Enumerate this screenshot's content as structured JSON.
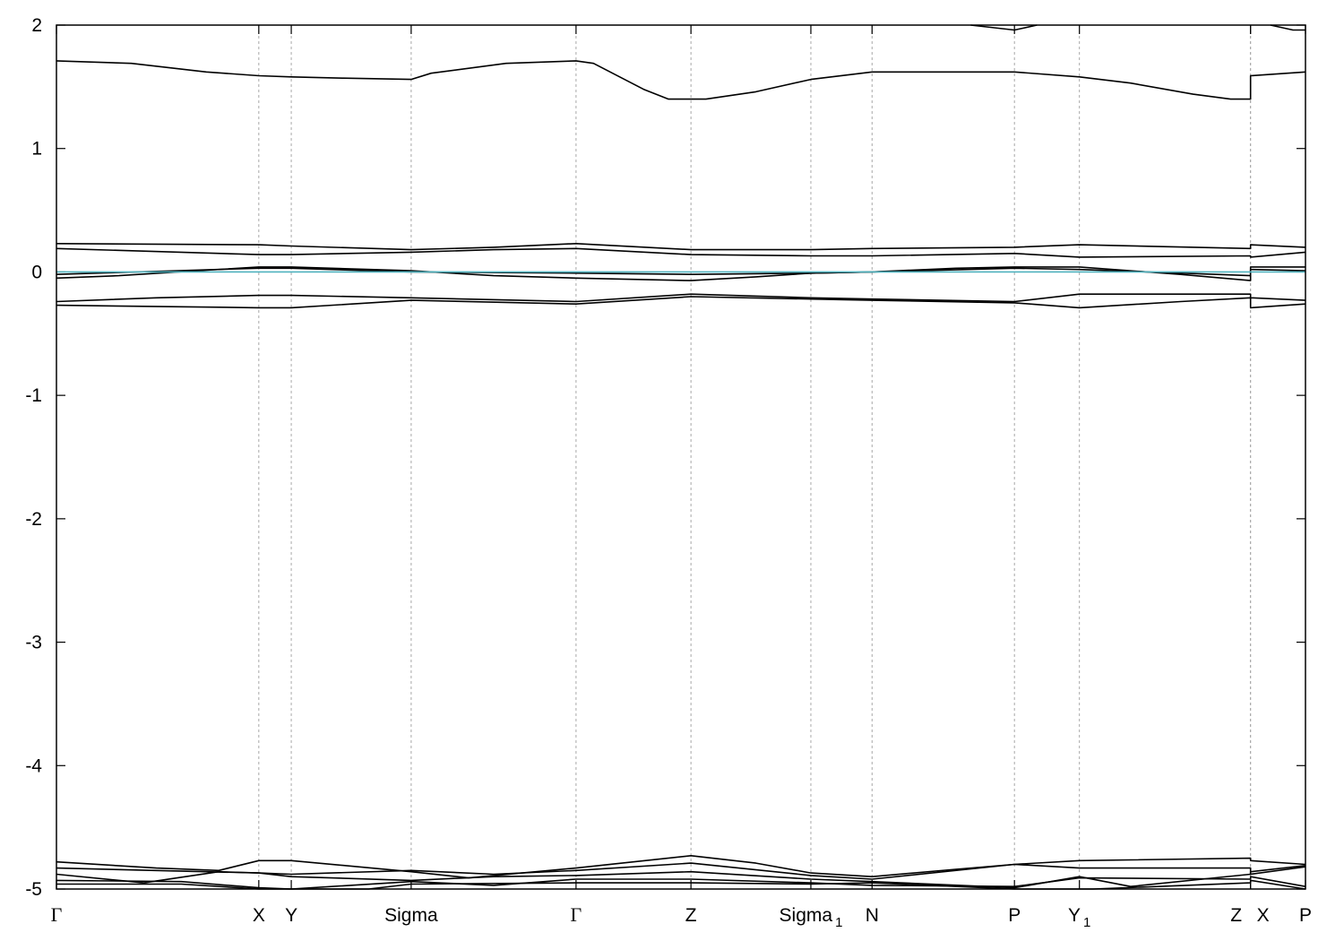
{
  "chart_data": {
    "type": "line",
    "title": "",
    "xlabel": "",
    "ylabel": "",
    "xlim": [
      0,
      1
    ],
    "ylim": [
      -5,
      2
    ],
    "grid": "vertical dashed at high-symmetry points",
    "y_ticks": [
      {
        "value": 2,
        "label": "2"
      },
      {
        "value": 1,
        "label": "1"
      },
      {
        "value": 0,
        "label": "0"
      },
      {
        "value": -1,
        "label": "-1"
      },
      {
        "value": -2,
        "label": "-2"
      },
      {
        "value": -3,
        "label": "-3"
      },
      {
        "value": -4,
        "label": "-4"
      },
      {
        "value": -5,
        "label": "-5"
      }
    ],
    "kpoints": [
      {
        "x": 0.0,
        "label": "Γ",
        "sub": ""
      },
      {
        "x": 0.162,
        "label": "X",
        "sub": ""
      },
      {
        "x": 0.188,
        "label": "Y",
        "sub": ""
      },
      {
        "x": 0.284,
        "label": "Sigma",
        "sub": ""
      },
      {
        "x": 0.416,
        "label": "Γ",
        "sub": ""
      },
      {
        "x": 0.508,
        "label": "Z",
        "sub": ""
      },
      {
        "x": 0.604,
        "label": "Sigma",
        "sub": "1"
      },
      {
        "x": 0.653,
        "label": "N",
        "sub": ""
      },
      {
        "x": 0.767,
        "label": "P",
        "sub": ""
      },
      {
        "x": 0.819,
        "label": "Y",
        "sub": "1"
      },
      {
        "x": 0.956,
        "label": "Z",
        "sub": ""
      },
      {
        "x": 0.956,
        "label": "X",
        "sub": ""
      },
      {
        "x": 1.0,
        "label": "P",
        "sub": ""
      }
    ],
    "fermi_level": {
      "y": 0.0,
      "color": "#4fb3bf"
    },
    "line_color": "#000000",
    "series": [
      {
        "points": [
          [
            0,
            1.71
          ],
          [
            0.06,
            1.69
          ],
          [
            0.12,
            1.62
          ],
          [
            0.162,
            1.59
          ],
          [
            0.188,
            1.58
          ],
          [
            0.23,
            1.57
          ],
          [
            0.284,
            1.56
          ],
          [
            0.3,
            1.61
          ],
          [
            0.36,
            1.69
          ],
          [
            0.416,
            1.71
          ],
          [
            0.43,
            1.69
          ],
          [
            0.47,
            1.48
          ],
          [
            0.49,
            1.4
          ],
          [
            0.52,
            1.4
          ],
          [
            0.56,
            1.46
          ],
          [
            0.604,
            1.56
          ],
          [
            0.653,
            1.62
          ],
          [
            0.767,
            1.62
          ],
          [
            0.819,
            1.58
          ],
          [
            0.86,
            1.53
          ],
          [
            0.91,
            1.44
          ],
          [
            0.94,
            1.4
          ],
          [
            0.956,
            1.4
          ],
          [
            0.956,
            1.59
          ],
          [
            1.0,
            1.62
          ]
        ]
      },
      {
        "points": [
          [
            0.732,
            2.0
          ],
          [
            0.767,
            1.96
          ],
          [
            0.785,
            2.0
          ]
        ]
      },
      {
        "points": [
          [
            0.972,
            2.0
          ],
          [
            0.99,
            1.96
          ],
          [
            1.0,
            1.96
          ]
        ]
      },
      {
        "points": [
          [
            0,
            0.23
          ],
          [
            0.162,
            0.22
          ],
          [
            0.188,
            0.21
          ],
          [
            0.284,
            0.18
          ],
          [
            0.35,
            0.2
          ],
          [
            0.416,
            0.23
          ],
          [
            0.508,
            0.18
          ],
          [
            0.604,
            0.18
          ],
          [
            0.653,
            0.19
          ],
          [
            0.767,
            0.2
          ],
          [
            0.819,
            0.22
          ],
          [
            0.956,
            0.19
          ],
          [
            0.956,
            0.22
          ],
          [
            1.0,
            0.2
          ]
        ]
      },
      {
        "points": [
          [
            0,
            0.19
          ],
          [
            0.162,
            0.14
          ],
          [
            0.188,
            0.14
          ],
          [
            0.284,
            0.16
          ],
          [
            0.35,
            0.18
          ],
          [
            0.416,
            0.19
          ],
          [
            0.508,
            0.14
          ],
          [
            0.604,
            0.13
          ],
          [
            0.653,
            0.13
          ],
          [
            0.767,
            0.15
          ],
          [
            0.819,
            0.12
          ],
          [
            0.956,
            0.13
          ],
          [
            0.956,
            0.12
          ],
          [
            1.0,
            0.16
          ]
        ]
      },
      {
        "points": [
          [
            0,
            -0.05
          ],
          [
            0.05,
            -0.03
          ],
          [
            0.162,
            0.04
          ],
          [
            0.188,
            0.04
          ],
          [
            0.284,
            0.01
          ],
          [
            0.35,
            -0.03
          ],
          [
            0.416,
            -0.05
          ],
          [
            0.508,
            -0.07
          ],
          [
            0.56,
            -0.04
          ],
          [
            0.604,
            -0.01
          ],
          [
            0.653,
            0.0
          ],
          [
            0.72,
            0.03
          ],
          [
            0.767,
            0.04
          ],
          [
            0.819,
            0.04
          ],
          [
            0.9,
            -0.02
          ],
          [
            0.956,
            -0.07
          ],
          [
            0.956,
            0.04
          ],
          [
            1.0,
            0.04
          ]
        ]
      },
      {
        "points": [
          [
            0,
            -0.02
          ],
          [
            0.162,
            0.03
          ],
          [
            0.188,
            0.03
          ],
          [
            0.284,
            0.0
          ],
          [
            0.416,
            -0.01
          ],
          [
            0.508,
            -0.02
          ],
          [
            0.604,
            -0.01
          ],
          [
            0.653,
            0.0
          ],
          [
            0.767,
            0.03
          ],
          [
            0.819,
            0.02
          ],
          [
            0.956,
            -0.03
          ],
          [
            0.956,
            0.02
          ],
          [
            1.0,
            0.01
          ]
        ]
      },
      {
        "points": [
          [
            0,
            -0.24
          ],
          [
            0.08,
            -0.21
          ],
          [
            0.162,
            -0.19
          ],
          [
            0.188,
            -0.19
          ],
          [
            0.284,
            -0.21
          ],
          [
            0.416,
            -0.24
          ],
          [
            0.508,
            -0.18
          ],
          [
            0.604,
            -0.21
          ],
          [
            0.653,
            -0.22
          ],
          [
            0.767,
            -0.24
          ],
          [
            0.819,
            -0.18
          ],
          [
            0.956,
            -0.18
          ],
          [
            0.956,
            -0.21
          ],
          [
            1.0,
            -0.23
          ]
        ]
      },
      {
        "points": [
          [
            0,
            -0.27
          ],
          [
            0.162,
            -0.29
          ],
          [
            0.188,
            -0.29
          ],
          [
            0.284,
            -0.23
          ],
          [
            0.416,
            -0.26
          ],
          [
            0.508,
            -0.2
          ],
          [
            0.604,
            -0.22
          ],
          [
            0.653,
            -0.23
          ],
          [
            0.767,
            -0.25
          ],
          [
            0.819,
            -0.29
          ],
          [
            0.9,
            -0.24
          ],
          [
            0.956,
            -0.21
          ],
          [
            0.956,
            -0.29
          ],
          [
            1.0,
            -0.26
          ]
        ]
      },
      {
        "points": [
          [
            0,
            -4.78
          ],
          [
            0.08,
            -4.83
          ],
          [
            0.13,
            -4.85
          ],
          [
            0.162,
            -4.77
          ],
          [
            0.188,
            -4.77
          ],
          [
            0.284,
            -4.86
          ],
          [
            0.33,
            -4.91
          ],
          [
            0.416,
            -4.83
          ],
          [
            0.508,
            -4.73
          ],
          [
            0.56,
            -4.79
          ],
          [
            0.604,
            -4.87
          ],
          [
            0.653,
            -4.9
          ],
          [
            0.72,
            -4.84
          ],
          [
            0.767,
            -4.8
          ],
          [
            0.819,
            -4.77
          ],
          [
            0.956,
            -4.75
          ],
          [
            0.956,
            -4.77
          ],
          [
            1.0,
            -4.8
          ]
        ]
      },
      {
        "points": [
          [
            0,
            -4.83
          ],
          [
            0.162,
            -4.87
          ],
          [
            0.188,
            -4.88
          ],
          [
            0.284,
            -4.85
          ],
          [
            0.35,
            -4.88
          ],
          [
            0.416,
            -4.85
          ],
          [
            0.508,
            -4.79
          ],
          [
            0.604,
            -4.89
          ],
          [
            0.653,
            -4.92
          ],
          [
            0.767,
            -4.8
          ],
          [
            0.819,
            -4.83
          ],
          [
            0.956,
            -4.83
          ],
          [
            0.956,
            -4.88
          ],
          [
            1.0,
            -4.82
          ]
        ]
      },
      {
        "points": [
          [
            0,
            -4.88
          ],
          [
            0.07,
            -4.95
          ],
          [
            0.13,
            -4.86
          ],
          [
            0.162,
            -4.87
          ],
          [
            0.188,
            -4.9
          ],
          [
            0.284,
            -4.93
          ],
          [
            0.35,
            -4.9
          ],
          [
            0.416,
            -4.89
          ],
          [
            0.508,
            -4.86
          ],
          [
            0.604,
            -4.92
          ],
          [
            0.653,
            -4.94
          ],
          [
            0.767,
            -4.99
          ],
          [
            0.819,
            -4.9
          ],
          [
            0.86,
            -4.98
          ],
          [
            0.956,
            -4.88
          ],
          [
            0.956,
            -4.86
          ],
          [
            1.0,
            -4.81
          ]
        ]
      },
      {
        "points": [
          [
            0,
            -4.93
          ],
          [
            0.1,
            -4.94
          ],
          [
            0.162,
            -4.99
          ],
          [
            0.188,
            -5.0
          ],
          [
            0.284,
            -4.94
          ],
          [
            0.35,
            -4.97
          ],
          [
            0.416,
            -4.92
          ],
          [
            0.508,
            -4.92
          ],
          [
            0.604,
            -4.95
          ],
          [
            0.653,
            -4.97
          ],
          [
            0.767,
            -4.98
          ],
          [
            0.819,
            -4.91
          ],
          [
            0.956,
            -4.92
          ],
          [
            0.956,
            -4.9
          ],
          [
            1.0,
            -4.98
          ]
        ]
      },
      {
        "points": [
          [
            0,
            -4.96
          ],
          [
            0.1,
            -4.96
          ],
          [
            0.162,
            -5.0
          ],
          [
            0.25,
            -5.0
          ],
          [
            0.284,
            -4.96
          ],
          [
            0.416,
            -4.95
          ],
          [
            0.508,
            -4.95
          ],
          [
            0.604,
            -4.96
          ],
          [
            0.653,
            -4.95
          ],
          [
            0.767,
            -5.0
          ],
          [
            0.83,
            -5.0
          ],
          [
            0.956,
            -4.95
          ],
          [
            0.956,
            -4.93
          ],
          [
            1.0,
            -5.0
          ]
        ]
      }
    ]
  }
}
